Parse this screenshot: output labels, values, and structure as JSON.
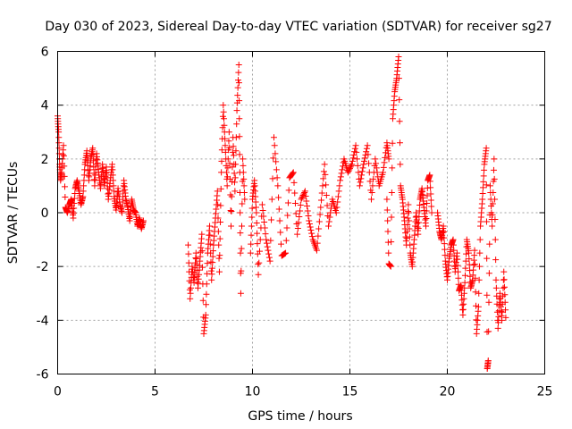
{
  "chart_data": {
    "type": "scatter",
    "title": "Day 030 of 2023, Sidereal Day-to-day VTEC variation (SDTVAR) for receiver sg27",
    "xlabel": "GPS time / hours",
    "ylabel": "SDTVAR / TECUs",
    "xlim": [
      0,
      25
    ],
    "ylim": [
      -6,
      6
    ],
    "x_ticks": [
      0,
      5,
      10,
      15,
      20,
      25
    ],
    "y_ticks": [
      -6,
      -4,
      -2,
      0,
      2,
      4,
      6
    ],
    "x_tick_labels": [
      "0",
      "5",
      "10",
      "15",
      "20",
      "25"
    ],
    "y_tick_labels": [
      "-6",
      "-4",
      "-2",
      "0",
      "2",
      "4",
      "6"
    ],
    "grid": true,
    "marker": "plus",
    "series_color": "#ff0000",
    "series": [
      {
        "name": "sg27",
        "segments": [
          {
            "x": [
              0.0,
              0.05,
              0.1,
              0.15,
              0.2,
              0.3,
              0.4,
              0.5,
              0.6,
              0.7,
              0.8,
              0.9,
              1.0,
              1.1,
              1.2,
              1.3,
              1.4,
              1.5,
              1.6,
              1.7,
              1.8,
              1.9,
              2.0,
              2.1,
              2.2,
              2.3,
              2.4,
              2.5,
              2.6,
              2.7,
              2.8,
              2.9,
              3.0,
              3.1,
              3.2,
              3.3,
              3.4,
              3.5,
              3.6,
              3.7,
              3.8,
              3.9,
              4.0,
              4.1,
              4.2,
              4.3,
              4.4
            ],
            "y": [
              3.6,
              3.0,
              1.8,
              1.2,
              1.5,
              2.5,
              0.2,
              0.0,
              0.3,
              0.5,
              -0.2,
              0.9,
              1.2,
              0.8,
              0.3,
              0.6,
              1.8,
              2.3,
              1.2,
              2.0,
              2.4,
              1.0,
              2.2,
              1.5,
              0.9,
              1.8,
              1.0,
              1.7,
              0.5,
              1.2,
              1.8,
              0.6,
              0.1,
              0.9,
              0.3,
              0.0,
              1.2,
              0.5,
              0.2,
              -0.3,
              0.5,
              0.1,
              0.0,
              -0.5,
              -0.2,
              -0.6,
              -0.3
            ]
          },
          {
            "x": [
              6.7,
              6.8,
              6.9,
              7.0,
              7.1,
              7.2,
              7.3,
              7.4,
              7.5,
              7.6,
              7.7,
              7.8,
              7.9,
              8.0,
              8.1,
              8.2,
              8.3,
              8.4,
              8.5,
              8.6,
              8.7,
              8.8,
              8.9,
              9.0,
              9.1,
              9.2,
              9.3,
              9.35,
              9.4,
              9.5,
              9.6
            ],
            "y": [
              -1.2,
              -3.2,
              -2.0,
              -2.6,
              -1.5,
              -2.8,
              -1.8,
              -0.8,
              -4.5,
              -3.8,
              -1.5,
              -0.5,
              -2.5,
              -1.2,
              -0.2,
              0.8,
              -2.2,
              1.5,
              4.0,
              2.5,
              1.0,
              3.0,
              -0.5,
              2.8,
              0.8,
              3.8,
              5.5,
              1.5,
              -3.0,
              2.0,
              0.5
            ]
          },
          {
            "x": [
              9.9,
              10.0,
              10.1,
              10.2,
              10.3,
              10.5,
              10.7,
              10.9,
              11.1,
              11.3,
              11.5,
              11.7,
              11.9,
              12.1,
              12.3,
              12.5,
              12.7,
              12.9,
              13.1,
              13.3,
              13.5,
              13.7,
              13.9,
              14.1,
              14.3,
              14.5,
              14.7,
              14.9,
              15.1,
              15.3,
              15.5,
              15.7,
              15.9,
              16.1,
              16.3,
              16.5,
              16.7,
              16.9,
              17.0
            ],
            "y": [
              -1.5,
              0.5,
              1.2,
              0.0,
              -2.3,
              0.3,
              -1.0,
              -1.8,
              2.8,
              1.0,
              -1.6,
              -1.5,
              1.3,
              1.5,
              -0.8,
              0.5,
              0.8,
              -0.3,
              -1.0,
              -1.4,
              0.2,
              1.8,
              -0.5,
              0.5,
              0.0,
              1.2,
              2.0,
              1.5,
              1.8,
              2.5,
              1.0,
              1.8,
              2.5,
              0.5,
              2.0,
              1.0,
              1.5,
              2.6,
              2.0
            ]
          },
          {
            "x": [
              16.9,
              17.0,
              17.1,
              17.2,
              17.3,
              17.4,
              17.5,
              17.6,
              17.7,
              17.8,
              17.9,
              18.0,
              18.1,
              18.2,
              18.3,
              18.4,
              18.5,
              18.6,
              18.7,
              18.8,
              18.9,
              19.0,
              19.1,
              19.2
            ],
            "y": [
              0.5,
              -1.9,
              -2.0,
              3.5,
              4.5,
              5.0,
              5.8,
              1.0,
              0.5,
              -0.3,
              -1.2,
              0.3,
              -1.5,
              -2.0,
              -1.0,
              0.0,
              -0.8,
              0.5,
              0.9,
              0.2,
              -0.5,
              1.2,
              1.4,
              0.0
            ]
          },
          {
            "x": [
              19.5,
              19.6,
              19.7,
              19.8,
              19.9,
              20.0,
              20.1,
              20.2,
              20.3,
              20.4,
              20.5,
              20.6,
              20.7,
              20.8,
              20.9,
              21.0,
              21.1,
              21.2,
              21.3,
              21.4,
              21.5,
              21.6,
              21.7,
              21.8,
              21.9,
              22.0,
              22.05,
              22.1,
              22.2,
              22.3,
              22.4,
              22.5,
              22.6,
              22.7,
              22.8,
              22.9,
              23.0
            ],
            "y": [
              0.0,
              -0.7,
              -1.0,
              -0.5,
              -1.8,
              -2.5,
              -1.7,
              -1.2,
              -1.0,
              -2.2,
              -1.5,
              -2.9,
              -2.7,
              -3.8,
              -2.6,
              -1.0,
              -1.5,
              -2.8,
              -2.5,
              -1.4,
              -4.5,
              -3.5,
              -0.5,
              0.5,
              1.8,
              2.4,
              -5.8,
              -5.5,
              1.0,
              -0.5,
              2.0,
              -2.5,
              -4.3,
              -3.0,
              -4.0,
              -2.2,
              -3.9
            ]
          }
        ]
      }
    ]
  }
}
